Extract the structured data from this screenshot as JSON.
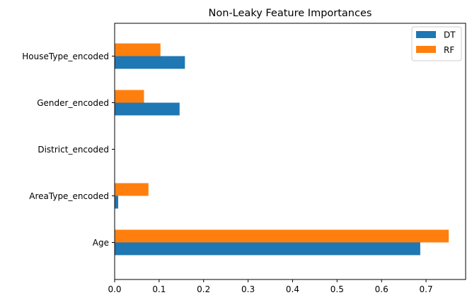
{
  "chart_data": {
    "type": "bar",
    "orientation": "horizontal",
    "title": "Non-Leaky Feature Importances",
    "xlabel": "",
    "ylabel": "",
    "categories": [
      "Age",
      "AreaType_encoded",
      "District_encoded",
      "Gender_encoded",
      "HouseType_encoded"
    ],
    "series": [
      {
        "name": "DT",
        "color": "#1f77b4",
        "values": [
          0.687,
          0.008,
          0.0,
          0.146,
          0.158
        ]
      },
      {
        "name": "RF",
        "color": "#ff7f0e",
        "values": [
          0.751,
          0.076,
          0.0,
          0.066,
          0.103
        ]
      }
    ],
    "xlim": [
      0,
      0.789
    ],
    "xticks": [
      "0.0",
      "0.1",
      "0.2",
      "0.3",
      "0.4",
      "0.5",
      "0.6",
      "0.7"
    ],
    "grid": false,
    "legend": {
      "placement": "top-right",
      "entries": [
        "DT",
        "RF"
      ]
    }
  }
}
